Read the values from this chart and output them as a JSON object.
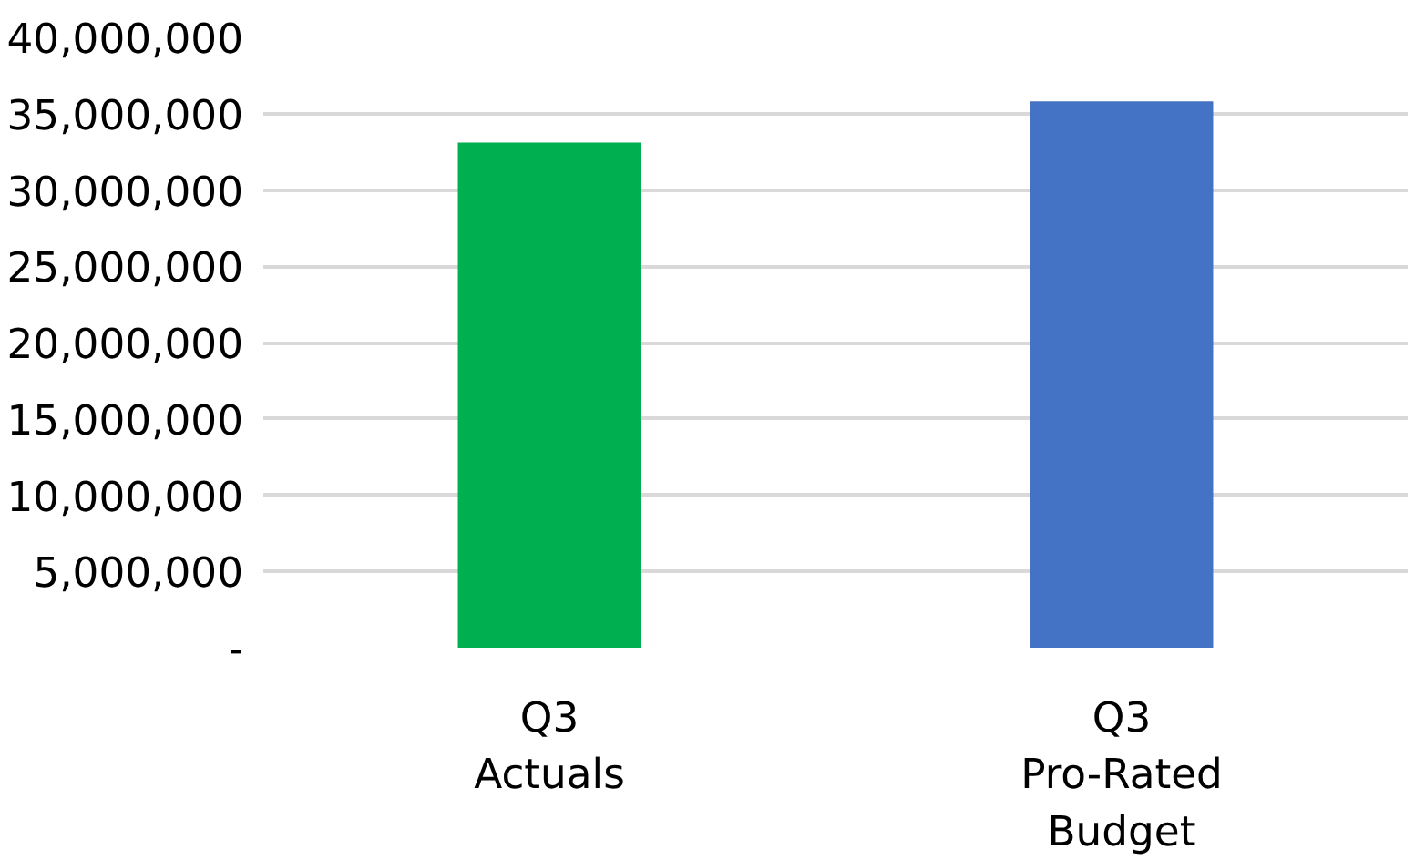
{
  "chart_data": {
    "type": "bar",
    "categories": [
      "Q3\nActuals",
      "Q3\nPro-Rated\nBudget"
    ],
    "values": [
      33100000,
      35800000
    ],
    "colors": [
      "#00b050",
      "#4472c4"
    ],
    "ylim": [
      0,
      40000000
    ],
    "yticks": [
      {
        "value": 0,
        "label": "-"
      },
      {
        "value": 5000000,
        "label": "5,000,000"
      },
      {
        "value": 10000000,
        "label": "10,000,000"
      },
      {
        "value": 15000000,
        "label": "15,000,000"
      },
      {
        "value": 20000000,
        "label": "20,000,000"
      },
      {
        "value": 25000000,
        "label": "25,000,000"
      },
      {
        "value": 30000000,
        "label": "30,000,000"
      },
      {
        "value": 35000000,
        "label": "35,000,000"
      },
      {
        "value": 40000000,
        "label": "40,000,000"
      }
    ],
    "grid": "y"
  }
}
